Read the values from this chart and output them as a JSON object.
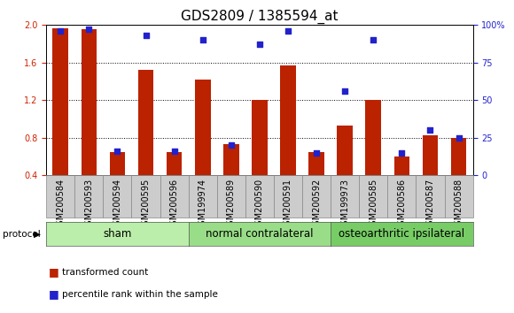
{
  "title": "GDS2809 / 1385594_at",
  "samples": [
    "GSM200584",
    "GSM200593",
    "GSM200594",
    "GSM200595",
    "GSM200596",
    "GSM199974",
    "GSM200589",
    "GSM200590",
    "GSM200591",
    "GSM200592",
    "GSM199973",
    "GSM200585",
    "GSM200586",
    "GSM200587",
    "GSM200588"
  ],
  "transformed_count": [
    1.97,
    1.96,
    0.65,
    1.52,
    0.65,
    1.42,
    0.73,
    1.2,
    1.57,
    0.65,
    0.93,
    1.2,
    0.6,
    0.83,
    0.8
  ],
  "percentile_rank": [
    96,
    97,
    16,
    93,
    16,
    90,
    20,
    87,
    96,
    15,
    56,
    90,
    15,
    30,
    25
  ],
  "bar_color": "#bb2200",
  "dot_color": "#2222cc",
  "ylim_left": [
    0.4,
    2.0
  ],
  "ylim_right": [
    0,
    100
  ],
  "yticks_left": [
    0.4,
    0.8,
    1.2,
    1.6,
    2.0
  ],
  "yticks_right": [
    0,
    25,
    50,
    75,
    100
  ],
  "ytick_labels_right": [
    "0",
    "25",
    "50",
    "75",
    "100%"
  ],
  "groups": [
    {
      "label": "sham",
      "start": 0,
      "end": 5,
      "color": "#bbeeaa"
    },
    {
      "label": "normal contralateral",
      "start": 5,
      "end": 10,
      "color": "#99dd88"
    },
    {
      "label": "osteoarthritic ipsilateral",
      "start": 10,
      "end": 15,
      "color": "#77cc66"
    }
  ],
  "protocol_label": "protocol",
  "legend1_label": "transformed count",
  "legend2_label": "percentile rank within the sample",
  "bar_width": 0.55,
  "axis_label_color_left": "#cc2200",
  "axis_label_color_right": "#2222cc",
  "title_fontsize": 11,
  "tick_fontsize": 7,
  "group_label_fontsize": 8.5,
  "xtick_bg_color": "#cccccc",
  "xtick_border_color": "#888888"
}
